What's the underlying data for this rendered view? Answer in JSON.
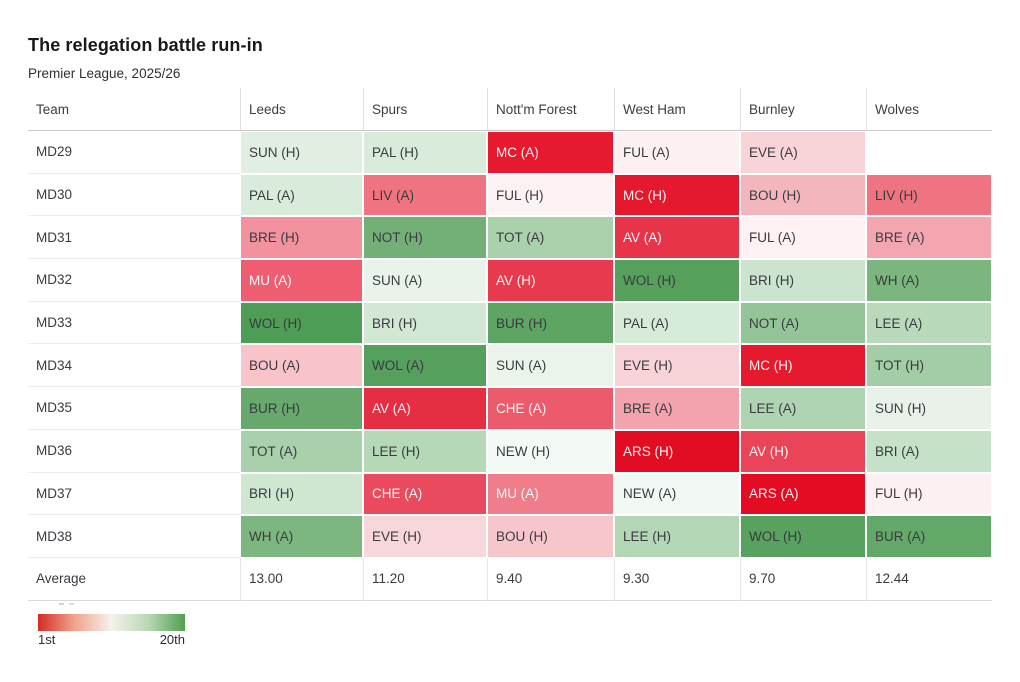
{
  "page": {
    "title": "The relegation battle run-in",
    "subtitle": "Premier League, 2025/26"
  },
  "table": {
    "row_header_label": "Team",
    "columns": [
      "Leeds",
      "Spurs",
      "Nott'm Forest",
      "West Ham",
      "Burnley",
      "Wolves"
    ],
    "rows": [
      {
        "label": "MD29",
        "cells": [
          {
            "t": "SUN (H)",
            "bg": "#e0efe2"
          },
          {
            "t": "PAL (H)",
            "bg": "#d9ecdb"
          },
          {
            "t": "MC (A)",
            "bg": "#e51a2f",
            "w": true
          },
          {
            "t": "FUL (A)",
            "bg": "#fcf0f1"
          },
          {
            "t": "EVE (A)",
            "bg": "#f8d3d8"
          },
          {
            "t": "",
            "bg": "#ffffff"
          }
        ]
      },
      {
        "label": "MD30",
        "cells": [
          {
            "t": "PAL (A)",
            "bg": "#d9ecdb"
          },
          {
            "t": "LIV (A)",
            "bg": "#ef7380"
          },
          {
            "t": "FUL (H)",
            "bg": "#fdf2f3"
          },
          {
            "t": "MC (H)",
            "bg": "#e5182d",
            "w": true
          },
          {
            "t": "BOU (H)",
            "bg": "#f4b6bd"
          },
          {
            "t": "LIV (H)",
            "bg": "#ef7482"
          }
        ]
      },
      {
        "label": "MD31",
        "cells": [
          {
            "t": "BRE (H)",
            "bg": "#f2929e"
          },
          {
            "t": "NOT (H)",
            "bg": "#73b077"
          },
          {
            "t": "TOT (A)",
            "bg": "#a9d1ab"
          },
          {
            "t": "AV (A)",
            "bg": "#e73448",
            "w": true
          },
          {
            "t": "FUL (A)",
            "bg": "#fdf1f2"
          },
          {
            "t": "BRE (A)",
            "bg": "#f3a6b0"
          }
        ]
      },
      {
        "label": "MD32",
        "cells": [
          {
            "t": "MU (A)",
            "bg": "#ee5d70",
            "w": true
          },
          {
            "t": "SUN (A)",
            "bg": "#e9f3ea"
          },
          {
            "t": "AV (H)",
            "bg": "#e73a4e",
            "w": true
          },
          {
            "t": "WOL (H)",
            "bg": "#56a05c"
          },
          {
            "t": "BRI (H)",
            "bg": "#cbe4cd"
          },
          {
            "t": "WH (A)",
            "bg": "#7ab67e"
          }
        ]
      },
      {
        "label": "MD33",
        "cells": [
          {
            "t": "WOL (H)",
            "bg": "#4e9d56"
          },
          {
            "t": "BRI (H)",
            "bg": "#d2e8d4"
          },
          {
            "t": "BUR (H)",
            "bg": "#5ea463"
          },
          {
            "t": "PAL (A)",
            "bg": "#d7ebd9"
          },
          {
            "t": "NOT (A)",
            "bg": "#94c598"
          },
          {
            "t": "LEE (A)",
            "bg": "#b8dabb"
          }
        ]
      },
      {
        "label": "MD34",
        "cells": [
          {
            "t": "BOU (A)",
            "bg": "#f8c3c9"
          },
          {
            "t": "WOL (A)",
            "bg": "#55a05c"
          },
          {
            "t": "SUN (A)",
            "bg": "#eaf4eb"
          },
          {
            "t": "EVE (H)",
            "bg": "#f8d4d8"
          },
          {
            "t": "MC (H)",
            "bg": "#e51a2e",
            "w": true
          },
          {
            "t": "TOT (H)",
            "bg": "#a2cda5"
          }
        ]
      },
      {
        "label": "MD35",
        "cells": [
          {
            "t": "BUR (H)",
            "bg": "#67a96c"
          },
          {
            "t": "AV (A)",
            "bg": "#e62e42",
            "w": true
          },
          {
            "t": "CHE (A)",
            "bg": "#ec5b6c",
            "w": true
          },
          {
            "t": "BRE (A)",
            "bg": "#f2a3ad"
          },
          {
            "t": "LEE (A)",
            "bg": "#aed4b1"
          },
          {
            "t": "SUN (H)",
            "bg": "#e8f2e9"
          }
        ]
      },
      {
        "label": "MD36",
        "cells": [
          {
            "t": "TOT (A)",
            "bg": "#a8d0ab"
          },
          {
            "t": "LEE (H)",
            "bg": "#b5d8b7"
          },
          {
            "t": "NEW (H)",
            "bg": "#f3f9f4"
          },
          {
            "t": "ARS (H)",
            "bg": "#e30d23",
            "w": true
          },
          {
            "t": "AV (H)",
            "bg": "#e94457",
            "w": true
          },
          {
            "t": "BRI (A)",
            "bg": "#c5e1c7"
          }
        ]
      },
      {
        "label": "MD37",
        "cells": [
          {
            "t": "BRI (H)",
            "bg": "#cfe6d1"
          },
          {
            "t": "CHE (A)",
            "bg": "#ea4a5d",
            "w": true
          },
          {
            "t": "MU (A)",
            "bg": "#ef7d8a",
            "w": true
          },
          {
            "t": "NEW (A)",
            "bg": "#f2f8f3"
          },
          {
            "t": "ARS (A)",
            "bg": "#e30c22",
            "w": true
          },
          {
            "t": "FUL (H)",
            "bg": "#fdf0f1"
          }
        ]
      },
      {
        "label": "MD38",
        "cells": [
          {
            "t": "WH (A)",
            "bg": "#7cb77f"
          },
          {
            "t": "EVE (H)",
            "bg": "#f8d7da"
          },
          {
            "t": "BOU (H)",
            "bg": "#f7c6cb"
          },
          {
            "t": "LEE (H)",
            "bg": "#b3d6b5"
          },
          {
            "t": "WOL (H)",
            "bg": "#58a15e"
          },
          {
            "t": "BUR (A)",
            "bg": "#62a868"
          }
        ]
      }
    ],
    "average_label": "Average",
    "averages": [
      "13.00",
      "11.20",
      "9.40",
      "9.30",
      "9.70",
      "12.44"
    ]
  },
  "legend": {
    "min_label": "1st",
    "max_label": "20th",
    "colors": [
      "#d42c21",
      "#f0a490",
      "#f4f2ec",
      "#b9d8b4",
      "#4f9f51"
    ]
  },
  "chart_data": {
    "type": "heatmap",
    "title": "The relegation battle run-in",
    "subtitle": "Premier League, 2025/26",
    "columns": [
      "Leeds",
      "Spurs",
      "Nott'm Forest",
      "West Ham",
      "Burnley",
      "Wolves"
    ],
    "rows": [
      "MD29",
      "MD30",
      "MD31",
      "MD32",
      "MD33",
      "MD34",
      "MD35",
      "MD36",
      "MD37",
      "MD38"
    ],
    "fixtures": [
      [
        "SUN (H)",
        "PAL (H)",
        "MC (A)",
        "FUL (A)",
        "EVE (A)",
        ""
      ],
      [
        "PAL (A)",
        "LIV (A)",
        "FUL (H)",
        "MC (H)",
        "BOU (H)",
        "LIV (H)"
      ],
      [
        "BRE (H)",
        "NOT (H)",
        "TOT (A)",
        "AV (A)",
        "FUL (A)",
        "BRE (A)"
      ],
      [
        "MU (A)",
        "SUN (A)",
        "AV (H)",
        "WOL (H)",
        "BRI (H)",
        "WH (A)"
      ],
      [
        "WOL (H)",
        "BRI (H)",
        "BUR (H)",
        "PAL (A)",
        "NOT (A)",
        "LEE (A)"
      ],
      [
        "BOU (A)",
        "WOL (A)",
        "SUN (A)",
        "EVE (H)",
        "MC (H)",
        "TOT (H)"
      ],
      [
        "BUR (H)",
        "AV (A)",
        "CHE (A)",
        "BRE (A)",
        "LEE (A)",
        "SUN (H)"
      ],
      [
        "TOT (A)",
        "LEE (H)",
        "NEW (H)",
        "ARS (H)",
        "AV (H)",
        "BRI (A)"
      ],
      [
        "BRI (H)",
        "CHE (A)",
        "MU (A)",
        "NEW (A)",
        "ARS (A)",
        "FUL (H)"
      ],
      [
        "WH (A)",
        "EVE (H)",
        "BOU (H)",
        "LEE (H)",
        "WOL (H)",
        "BUR (A)"
      ]
    ],
    "averages": [
      13.0,
      11.2,
      9.4,
      9.3,
      9.7,
      12.44
    ],
    "color_scale": {
      "min_label": "1st",
      "max_label": "20th",
      "min_color": "#d42c21",
      "mid_color": "#f4f2ec",
      "max_color": "#4f9f51",
      "meaning": "opponent league position: red = vs 1st (hardest), green = vs 20th (easiest)"
    },
    "legend_position": "bottom-left"
  }
}
